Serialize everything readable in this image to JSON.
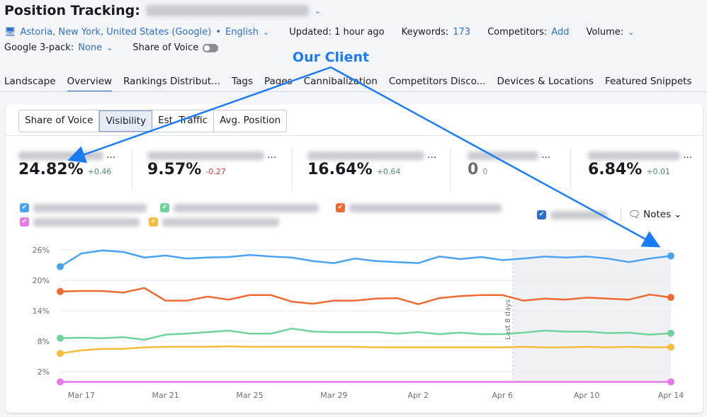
{
  "header": {
    "title": "Position Tracking:",
    "domain_blurred": true
  },
  "meta": {
    "location": "Astoria, New York, United States (Google)",
    "language": "English",
    "updated": "Updated: 1 hour ago",
    "keywords_label": "Keywords:",
    "keywords": "173",
    "competitors_label": "Competitors:",
    "competitors_add": "Add",
    "volume_label": "Volume:",
    "pack_label": "Google 3-pack:",
    "pack_value": "None",
    "sov_label": "Share of Voice"
  },
  "tabs": [
    "Landscape",
    "Overview",
    "Rankings Distribut...",
    "Tags",
    "Pages",
    "Cannibalization",
    "Competitors Disco...",
    "Devices & Locations",
    "Featured Snippets"
  ],
  "active_tab": "Overview",
  "metric_tabs": [
    "Share of Voice",
    "Visibility",
    "Est. Traffic",
    "Avg. Position"
  ],
  "active_metric": "Visibility",
  "kpis": [
    {
      "value": "24.82%",
      "delta": "+0.46",
      "color": "#4e8a66"
    },
    {
      "value": "9.57%",
      "delta": "-0.27",
      "color": "#d1303b"
    },
    {
      "value": "16.64%",
      "delta": "+0.64",
      "color": "#4e8a66"
    },
    {
      "value": "0",
      "delta": "0",
      "color": "#8a8c94"
    },
    {
      "value": "6.84%",
      "delta": "+0.01",
      "color": "#4e8a66"
    }
  ],
  "notes_label": "Notes",
  "annotation": {
    "text": "Our Client",
    "color": "#1a7cf5"
  },
  "chart_data": {
    "type": "line",
    "x": [
      "Mar 16",
      "Mar 17",
      "Mar 18",
      "Mar 19",
      "Mar 20",
      "Mar 21",
      "Mar 22",
      "Mar 23",
      "Mar 24",
      "Mar 25",
      "Mar 26",
      "Mar 27",
      "Mar 28",
      "Mar 29",
      "Mar 30",
      "Mar 31",
      "Apr 1",
      "Apr 2",
      "Apr 3",
      "Apr 4",
      "Apr 5",
      "Apr 6",
      "Apr 7",
      "Apr 8",
      "Apr 9",
      "Apr 10",
      "Apr 11",
      "Apr 12",
      "Apr 13",
      "Apr 14"
    ],
    "xticks": [
      "Mar 17",
      "Mar 21",
      "Mar 25",
      "Mar 29",
      "Apr 2",
      "Apr 6",
      "Apr 10",
      "Apr 14"
    ],
    "yticks": [
      "26%",
      "20%",
      "14%",
      "8%",
      "2%"
    ],
    "ylim": [
      0,
      26
    ],
    "grid": true,
    "shaded_region": {
      "from": "Apr 7",
      "to": "Apr 14",
      "label": "Last 8 days"
    },
    "series": [
      {
        "color": "#4aa3f2",
        "values": [
          22.7,
          25.3,
          25.9,
          25.6,
          24.5,
          24.9,
          24.3,
          24.5,
          24.6,
          25.0,
          24.7,
          24.5,
          23.8,
          23.4,
          24.3,
          23.8,
          23.6,
          23.4,
          24.7,
          24.2,
          24.6,
          24.0,
          24.3,
          24.7,
          24.5,
          24.7,
          24.3,
          23.6,
          24.3,
          24.82
        ]
      },
      {
        "color": "#ef6a33",
        "values": [
          17.8,
          17.9,
          17.9,
          17.6,
          18.5,
          16.0,
          16.0,
          16.8,
          16.2,
          17.1,
          17.1,
          15.8,
          15.4,
          16.0,
          16.0,
          16.4,
          16.5,
          15.3,
          16.5,
          16.9,
          17.1,
          17.1,
          16.0,
          16.4,
          16.2,
          16.6,
          16.4,
          16.2,
          17.2,
          16.64
        ]
      },
      {
        "color": "#6fd39b",
        "values": [
          8.6,
          8.7,
          8.6,
          8.8,
          8.3,
          9.3,
          9.5,
          9.8,
          10.1,
          9.5,
          9.5,
          10.5,
          9.9,
          9.8,
          9.8,
          9.8,
          9.5,
          9.8,
          9.4,
          9.7,
          9.4,
          9.4,
          9.7,
          10.1,
          9.9,
          9.9,
          9.6,
          9.7,
          9.3,
          9.57
        ]
      },
      {
        "color": "#f4bd3c",
        "values": [
          5.6,
          6.2,
          6.5,
          6.5,
          6.8,
          6.9,
          6.9,
          6.9,
          7.0,
          6.9,
          6.9,
          6.9,
          6.9,
          6.9,
          6.9,
          6.8,
          6.8,
          6.8,
          6.8,
          6.8,
          6.8,
          6.8,
          6.9,
          6.8,
          6.8,
          6.9,
          6.8,
          6.9,
          6.8,
          6.84
        ]
      },
      {
        "color": "#e57bea",
        "values": [
          0,
          0,
          0,
          0,
          0,
          0,
          0,
          0,
          0,
          0,
          0,
          0,
          0,
          0,
          0,
          0,
          0,
          0,
          0,
          0,
          0,
          0,
          0,
          0,
          0,
          0,
          0,
          0,
          0,
          0
        ]
      }
    ]
  }
}
